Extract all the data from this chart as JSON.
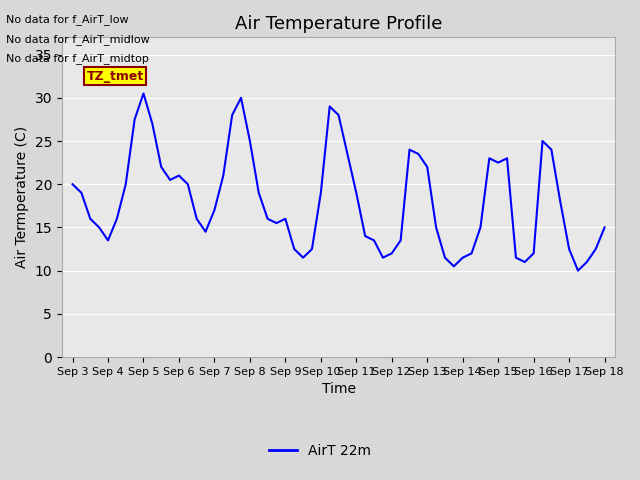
{
  "title": "Air Temperature Profile",
  "ylabel": "Air Termperature (C)",
  "xlabel": "Time",
  "ylim": [
    0,
    37
  ],
  "yticks": [
    0,
    5,
    10,
    15,
    20,
    25,
    30,
    35
  ],
  "line_color": "blue",
  "line_width": 1.5,
  "bg_color": "#e8e8e8",
  "plot_bg_color": "#f0f0f0",
  "annotations": [
    "No data for f_AirT_low",
    "No data for f_AirT_midlow",
    "No data for f_AirT_midtop"
  ],
  "tz_tmet_label": "TZ_tmet",
  "legend_label": "AirT 22m",
  "x_tick_labels": [
    "Sep 3",
    "Sep 4",
    "Sep 5",
    "Sep 6",
    "Sep 7",
    "Sep 8",
    "Sep 9",
    "Sep 10",
    "Sep 11",
    "Sep 12",
    "Sep 13",
    "Sep 14",
    "Sep 15",
    "Sep 16",
    "Sep 17",
    "Sep 18"
  ],
  "x_values": [
    0,
    0.25,
    0.5,
    0.75,
    1.0,
    1.25,
    1.5,
    1.75,
    2.0,
    2.25,
    2.5,
    2.75,
    3.0,
    3.25,
    3.5,
    3.75,
    4.0,
    4.25,
    4.5,
    4.75,
    5.0,
    5.25,
    5.5,
    5.75,
    6.0,
    6.25,
    6.5,
    6.75,
    7.0,
    7.25,
    7.5,
    7.75,
    8.0,
    8.25,
    8.5,
    8.75,
    9.0,
    9.25,
    9.5,
    9.75,
    10.0,
    10.25,
    10.5,
    10.75,
    11.0,
    11.25,
    11.5,
    11.75,
    12.0,
    12.25,
    12.5,
    12.75,
    13.0,
    13.25,
    13.5,
    13.75,
    14.0,
    14.25,
    14.5,
    14.75,
    15.0
  ],
  "y_values": [
    20,
    19,
    16,
    15,
    13.5,
    16,
    20,
    27.5,
    30.5,
    27,
    22,
    20.5,
    21,
    20,
    16,
    14.5,
    17,
    21,
    28,
    30,
    25,
    19,
    16,
    15.5,
    16,
    12.5,
    11.5,
    12.5,
    19,
    29,
    28,
    23.5,
    19,
    14,
    13.5,
    11.5,
    12,
    13.5,
    24,
    23.5,
    22,
    15,
    11.5,
    10.5,
    11.5,
    12,
    15,
    23,
    22.5,
    23,
    11.5,
    11,
    12,
    25,
    24,
    18,
    12.5,
    10,
    11,
    12.5,
    15
  ]
}
